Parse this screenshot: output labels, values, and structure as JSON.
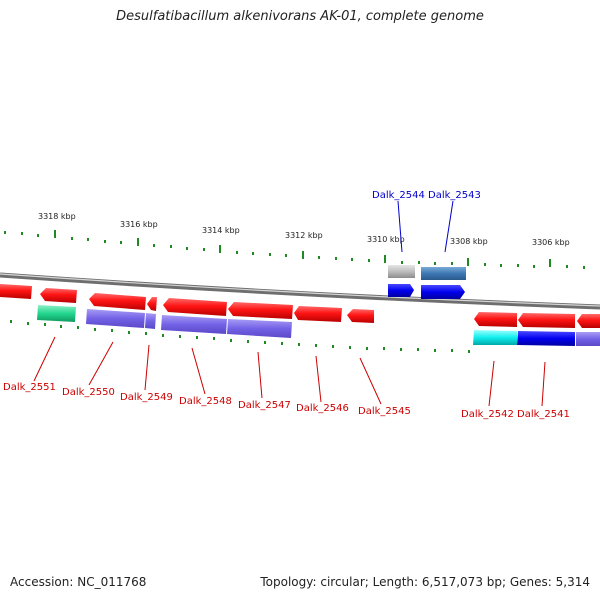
{
  "title": "Desulfatibacillum alkenivorans AK-01, complete genome",
  "footer": {
    "accession": "Accession: NC_011768",
    "summary": "Topology: circular; Length: 6,517,073 bp; Genes: 5,314"
  },
  "colors": {
    "red_gene": "#ff1a1a",
    "red_label": "#cc0000",
    "blue_label": "#0000cc",
    "purple_track": "#7b68ee",
    "tick_green": "#1f8a1f",
    "backbone": "#8f8f8f"
  },
  "ruler": [
    {
      "text": "3318 kbp"
    },
    {
      "text": "3316 kbp"
    },
    {
      "text": "3314 kbp"
    },
    {
      "text": "3312 kbp"
    },
    {
      "text": "3310 kbp"
    },
    {
      "text": "3308 kbp"
    },
    {
      "text": "3306 kbp"
    }
  ],
  "genes_bottom": [
    {
      "text": "Dalk_2551"
    },
    {
      "text": "Dalk_2550"
    },
    {
      "text": "Dalk_2549"
    },
    {
      "text": "Dalk_2548"
    },
    {
      "text": "Dalk_2547"
    },
    {
      "text": "Dalk_2546"
    },
    {
      "text": "Dalk_2545"
    },
    {
      "text": "Dalk_2542"
    },
    {
      "text": "Dalk_2541"
    }
  ],
  "genes_top": [
    {
      "text": "Dalk_2544"
    },
    {
      "text": "Dalk_2543"
    }
  ]
}
